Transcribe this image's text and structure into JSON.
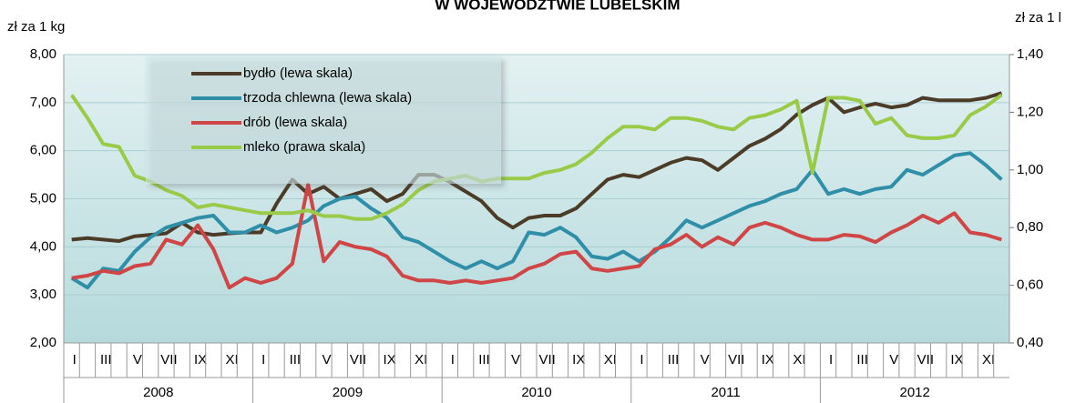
{
  "chart_data": {
    "type": "line",
    "title": "W WOJEWÓDZTWIE LUBELSKIM",
    "ylabel": "zł za 1 kg",
    "y2label": "zł za 1 l",
    "categories": [
      "I",
      null,
      "III",
      null,
      "V",
      null,
      "VII",
      null,
      "IX",
      null,
      "XI",
      null,
      "I",
      null,
      "III",
      null,
      "V",
      null,
      "VII",
      null,
      "IX",
      null,
      "XI",
      null,
      "I",
      null,
      "III",
      null,
      "V",
      null,
      "VII",
      null,
      "IX",
      null,
      "XI",
      null,
      "I",
      null,
      "III",
      null,
      "V",
      null,
      "VII",
      null,
      "IX",
      null,
      "XI",
      null,
      "I",
      null,
      "III",
      null,
      "V",
      null,
      "VII",
      null,
      "IX",
      null,
      "XI",
      null
    ],
    "years": [
      "2008",
      "2009",
      "2010",
      "2011",
      "2012"
    ],
    "ylim": [
      2,
      8
    ],
    "yticks": [
      {
        "value": 2,
        "label": "2,00"
      },
      {
        "value": 3,
        "label": "3,00"
      },
      {
        "value": 4,
        "label": "4,00"
      },
      {
        "value": 5,
        "label": "5,00"
      },
      {
        "value": 6,
        "label": "6,00"
      },
      {
        "value": 7,
        "label": "7,00"
      },
      {
        "value": 8,
        "label": "8,00"
      }
    ],
    "y2lim": [
      0.4,
      1.4
    ],
    "y2ticks": [
      {
        "value": 0.4,
        "label": "0,40"
      },
      {
        "value": 0.6,
        "label": "0,60"
      },
      {
        "value": 0.8,
        "label": "0,80"
      },
      {
        "value": 1.0,
        "label": "1,00"
      },
      {
        "value": 1.2,
        "label": "1,20"
      },
      {
        "value": 1.4,
        "label": "1,40"
      }
    ],
    "grid": true,
    "legend": "upper-left",
    "series": [
      {
        "name": "bydło (lewa skala)",
        "color": "#4b3b27",
        "values": [
          4.15,
          4.18,
          4.15,
          4.12,
          4.22,
          4.25,
          4.28,
          4.5,
          4.3,
          4.25,
          4.28,
          4.3,
          4.3,
          4.9,
          5.4,
          5.1,
          5.25,
          5.0,
          5.1,
          5.2,
          4.95,
          5.1,
          5.5,
          5.5,
          5.35,
          5.15,
          4.95,
          4.6,
          4.4,
          4.6,
          4.65,
          4.65,
          4.8,
          5.1,
          5.4,
          5.5,
          5.45,
          5.6,
          5.75,
          5.85,
          5.8,
          5.6,
          5.85,
          6.1,
          6.25,
          6.45,
          6.75,
          6.95,
          7.1,
          6.8,
          6.9,
          6.98,
          6.9,
          6.95,
          7.1,
          7.05,
          7.05,
          7.05,
          7.1,
          7.2
        ]
      },
      {
        "name": "trzoda chlewna (lewa skala)",
        "color": "#2f8ea8",
        "values": [
          3.35,
          3.15,
          3.55,
          3.5,
          3.9,
          4.2,
          4.4,
          4.5,
          4.6,
          4.65,
          4.3,
          4.3,
          4.45,
          4.3,
          4.4,
          4.55,
          4.85,
          5.0,
          5.05,
          4.8,
          4.6,
          4.2,
          4.1,
          3.9,
          3.7,
          3.55,
          3.7,
          3.55,
          3.7,
          4.3,
          4.25,
          4.4,
          4.2,
          3.8,
          3.75,
          3.9,
          3.7,
          3.9,
          4.2,
          4.55,
          4.4,
          4.55,
          4.7,
          4.85,
          4.95,
          5.1,
          5.2,
          5.6,
          5.1,
          5.2,
          5.1,
          5.2,
          5.25,
          5.6,
          5.5,
          5.7,
          5.9,
          5.95,
          5.7,
          5.4
        ]
      },
      {
        "name": "drób (lewa skala)",
        "color": "#d04545",
        "values": [
          3.35,
          3.4,
          3.5,
          3.45,
          3.6,
          3.65,
          4.15,
          4.05,
          4.45,
          3.95,
          3.15,
          3.35,
          3.25,
          3.35,
          3.65,
          5.3,
          3.7,
          4.1,
          4.0,
          3.95,
          3.8,
          3.4,
          3.3,
          3.3,
          3.25,
          3.3,
          3.25,
          3.3,
          3.35,
          3.55,
          3.65,
          3.85,
          3.9,
          3.55,
          3.5,
          3.55,
          3.6,
          3.95,
          4.05,
          4.25,
          4.0,
          4.2,
          4.05,
          4.4,
          4.5,
          4.4,
          4.25,
          4.15,
          4.15,
          4.25,
          4.22,
          4.1,
          4.3,
          4.45,
          4.65,
          4.5,
          4.7,
          4.3,
          4.25,
          4.15
        ]
      },
      {
        "name": "mleko (prawa skala)",
        "color": "#9acb48",
        "axis": "y2",
        "values": [
          1.26,
          1.18,
          1.09,
          1.08,
          0.98,
          0.96,
          0.93,
          0.91,
          0.87,
          0.88,
          0.87,
          0.86,
          0.85,
          0.85,
          0.85,
          0.86,
          0.84,
          0.84,
          0.83,
          0.83,
          0.85,
          0.88,
          0.93,
          0.96,
          0.97,
          0.98,
          0.96,
          0.97,
          0.97,
          0.97,
          0.99,
          1.0,
          1.02,
          1.06,
          1.11,
          1.15,
          1.15,
          1.14,
          1.18,
          1.18,
          1.17,
          1.15,
          1.14,
          1.18,
          1.19,
          1.21,
          1.24,
          0.99,
          1.25,
          1.25,
          1.24,
          1.16,
          1.18,
          1.12,
          1.11,
          1.11,
          1.12,
          1.19,
          1.22,
          1.26
        ]
      }
    ]
  }
}
